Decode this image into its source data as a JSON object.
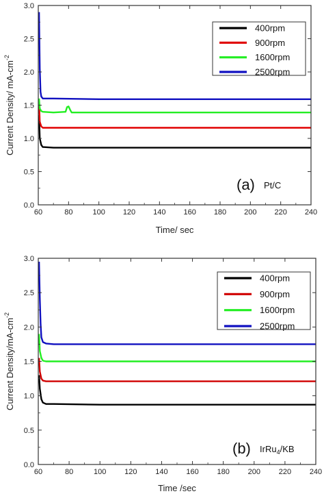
{
  "chart_data": [
    {
      "type": "line",
      "panel_label": "(a)",
      "annotation": "Pt/C",
      "xlabel": "Time/ sec",
      "ylabel": "Current Density/ mA-cm",
      "ylabel_sup": "-2",
      "xlim": [
        60,
        240
      ],
      "ylim": [
        0.0,
        3.0
      ],
      "xticks": [
        "60",
        "80",
        "100",
        "120",
        "140",
        "160",
        "180",
        "200",
        "220",
        "240"
      ],
      "yticks": [
        "0.0",
        "0.5",
        "1.0",
        "1.5",
        "2.0",
        "2.5",
        "3.0"
      ],
      "legend_position": "top-right",
      "series": [
        {
          "name": "400rpm",
          "color": "#000000",
          "x": [
            60.5,
            61,
            62,
            63,
            70,
            100,
            150,
            200,
            240
          ],
          "y": [
            1.35,
            1.0,
            0.9,
            0.87,
            0.86,
            0.86,
            0.86,
            0.86,
            0.86
          ]
        },
        {
          "name": "900rpm",
          "color": "#e00000",
          "x": [
            60.5,
            61,
            62,
            63,
            70,
            100,
            150,
            200,
            240
          ],
          "y": [
            1.55,
            1.25,
            1.18,
            1.16,
            1.16,
            1.16,
            1.16,
            1.16,
            1.16
          ]
        },
        {
          "name": "1600rpm",
          "color": "#22ee22",
          "x": [
            60.5,
            61,
            62,
            63,
            70,
            78,
            79,
            80,
            81,
            82,
            100,
            150,
            200,
            240
          ],
          "y": [
            1.6,
            1.45,
            1.41,
            1.4,
            1.39,
            1.4,
            1.47,
            1.48,
            1.43,
            1.39,
            1.39,
            1.39,
            1.39,
            1.39
          ]
        },
        {
          "name": "2500rpm",
          "color": "#1010c0",
          "x": [
            60.5,
            61,
            61.5,
            62,
            63,
            70,
            100,
            150,
            200,
            240
          ],
          "y": [
            2.9,
            2.05,
            1.7,
            1.63,
            1.6,
            1.6,
            1.59,
            1.59,
            1.59,
            1.59
          ]
        }
      ]
    },
    {
      "type": "line",
      "panel_label": "(b)",
      "annotation": "IrRu",
      "annotation_sub": "4",
      "annotation_suffix": "/KB",
      "xlabel": "Time /sec",
      "ylabel": "Current Density/mA-cm",
      "ylabel_sup": "-2",
      "xlim": [
        60,
        240
      ],
      "ylim": [
        0.0,
        3.0
      ],
      "xticks": [
        "60",
        "80",
        "100",
        "120",
        "140",
        "160",
        "180",
        "200",
        "220",
        "240"
      ],
      "yticks": [
        "0.0",
        "0.5",
        "1.0",
        "1.5",
        "2.0",
        "2.5",
        "3.0"
      ],
      "legend_position": "top-right",
      "series": [
        {
          "name": "400rpm",
          "color": "#000000",
          "x": [
            60.5,
            61,
            62,
            63,
            65,
            70,
            100,
            150,
            200,
            240
          ],
          "y": [
            1.3,
            1.1,
            0.95,
            0.9,
            0.88,
            0.88,
            0.87,
            0.87,
            0.87,
            0.87
          ]
        },
        {
          "name": "900rpm",
          "color": "#d00000",
          "x": [
            60.5,
            61,
            62,
            63,
            65,
            70,
            100,
            150,
            200,
            240
          ],
          "y": [
            1.55,
            1.35,
            1.25,
            1.22,
            1.21,
            1.21,
            1.21,
            1.21,
            1.21,
            1.21
          ]
        },
        {
          "name": "1600rpm",
          "color": "#22ee22",
          "x": [
            60.5,
            61,
            62,
            63,
            65,
            70,
            100,
            150,
            200,
            240
          ],
          "y": [
            1.9,
            1.65,
            1.55,
            1.51,
            1.5,
            1.5,
            1.5,
            1.5,
            1.5,
            1.5
          ]
        },
        {
          "name": "2500rpm",
          "color": "#1010c0",
          "x": [
            60.5,
            61,
            61.5,
            62,
            63,
            65,
            70,
            100,
            150,
            200,
            240
          ],
          "y": [
            2.95,
            2.4,
            2.05,
            1.85,
            1.78,
            1.76,
            1.75,
            1.75,
            1.75,
            1.75,
            1.75
          ]
        }
      ]
    }
  ]
}
